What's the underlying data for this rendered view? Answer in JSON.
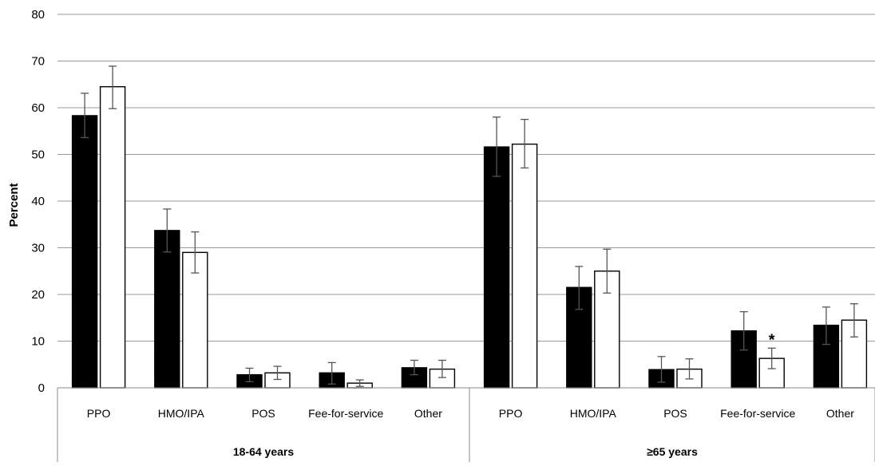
{
  "chart_data": {
    "type": "bar",
    "ylabel": "Percent",
    "ylim": [
      0,
      80
    ],
    "yticks": [
      "0",
      "10",
      "20",
      "30",
      "40",
      "50",
      "60",
      "70",
      "80"
    ],
    "grid": true,
    "legend": "none",
    "groups": [
      {
        "label": "18-64 years",
        "categories": [
          "PPO",
          "HMO/IPA",
          "POS",
          "Fee-for-service",
          "Other"
        ],
        "series": [
          {
            "fill": "#000000",
            "values": [
              58.3,
              33.7,
              2.8,
              3.2,
              4.3
            ],
            "err_low": [
              53.6,
              29.1,
              1.3,
              0.8,
              2.8
            ],
            "err_high": [
              63.1,
              38.3,
              4.2,
              5.4,
              5.9
            ]
          },
          {
            "fill": "#ffffff",
            "values": [
              64.5,
              29.0,
              3.2,
              1.0,
              4.0
            ],
            "err_low": [
              59.8,
              24.6,
              1.8,
              0.3,
              2.2
            ],
            "err_high": [
              68.9,
              33.4,
              4.6,
              1.7,
              5.9
            ]
          }
        ]
      },
      {
        "label": "≥65 years",
        "categories": [
          "PPO",
          "HMO/IPA",
          "POS",
          "Fee-for-service",
          "Other"
        ],
        "series": [
          {
            "fill": "#000000",
            "values": [
              51.6,
              21.5,
              3.9,
              12.2,
              13.4
            ],
            "err_low": [
              45.3,
              16.8,
              1.2,
              8.1,
              9.3
            ],
            "err_high": [
              58.0,
              26.0,
              6.7,
              16.3,
              17.3
            ]
          },
          {
            "fill": "#ffffff",
            "values": [
              52.2,
              25.0,
              4.0,
              6.3,
              14.5
            ],
            "err_low": [
              47.1,
              20.3,
              1.9,
              4.1,
              10.9
            ],
            "err_high": [
              57.5,
              29.7,
              6.2,
              8.5,
              18.0
            ]
          }
        ]
      }
    ],
    "annotations": [
      {
        "text": "*",
        "group": 1,
        "category": 3,
        "series": 1
      }
    ]
  }
}
